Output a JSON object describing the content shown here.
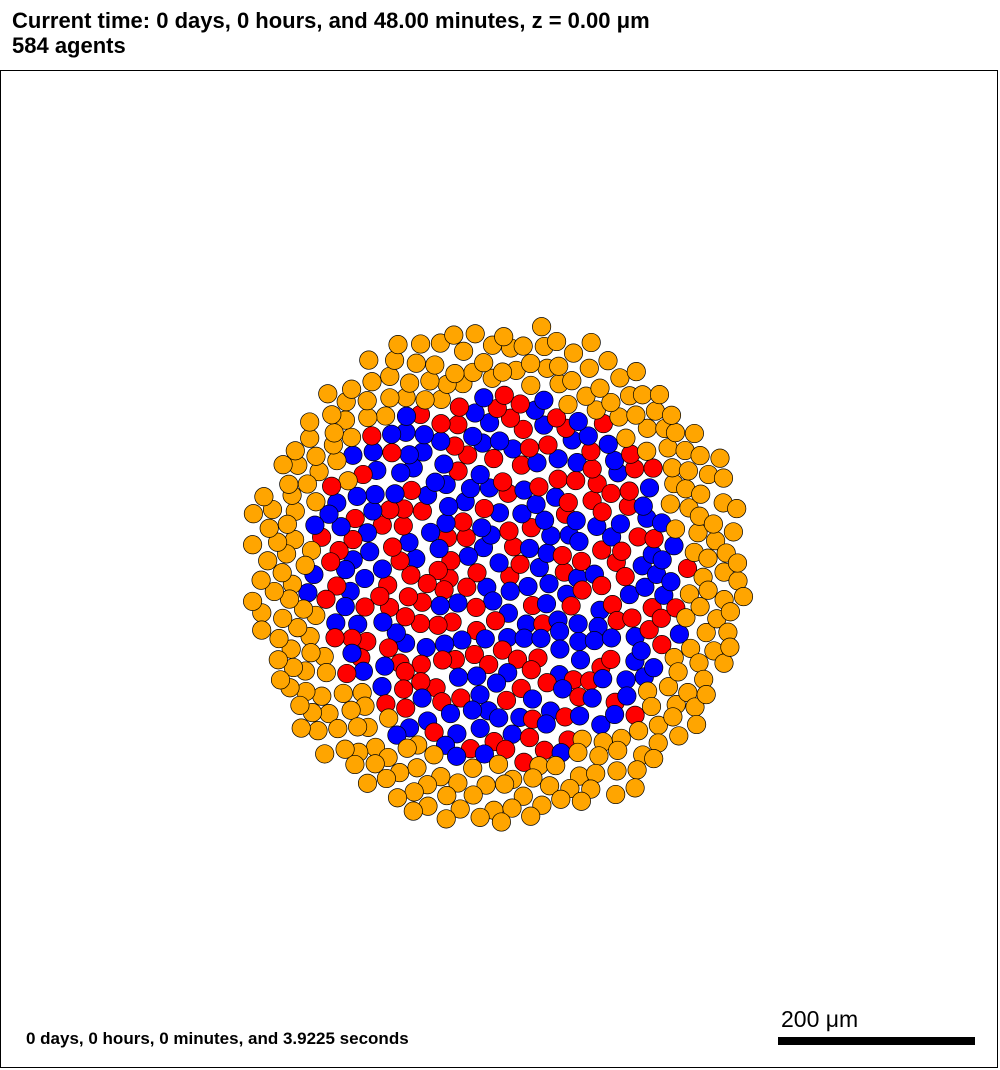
{
  "header": {
    "time_line": "Current time: 0 days, 0 hours, and 48.00 minutes, z = 0.00 μm",
    "agents_line": "584 agents"
  },
  "footer": {
    "elapsed": "0 days, 0 hours, 0 minutes, and 3.9225 seconds",
    "scale_label": "200 μm"
  },
  "colors": {
    "outer_cell": "#FFA500",
    "red_cell": "#FF0000",
    "blue_cell": "#0000FF",
    "cell_outline": "#000000"
  },
  "simulation": {
    "agent_count": 584
  }
}
